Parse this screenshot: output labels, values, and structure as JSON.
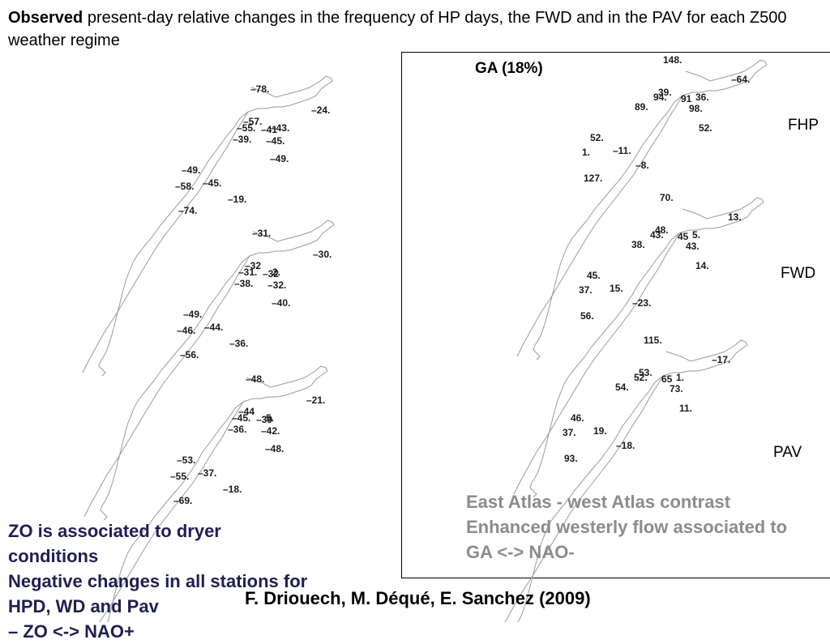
{
  "title": {
    "bold": "Observed",
    "rest": " present-day relative changes in the frequency of HP days, the FWD and in the PAV for each Z500 weather regime"
  },
  "left_panels": [
    {
      "values": [
        {
          "t": "–78."
        },
        {
          "t": "–24."
        },
        {
          "t": "–57."
        },
        {
          "t": "–55."
        },
        {
          "t": "–41"
        },
        {
          "t": "–43."
        },
        {
          "t": "–39."
        },
        {
          "t": "–45."
        },
        {
          "t": "–49."
        },
        {
          "t": "–49."
        },
        {
          "t": "–58."
        },
        {
          "t": "–45."
        },
        {
          "t": "–19."
        },
        {
          "t": "–74."
        }
      ]
    },
    {
      "values": [
        {
          "t": "–31."
        },
        {
          "t": "–30."
        },
        {
          "t": "–32"
        },
        {
          "t": "–31."
        },
        {
          "t": "–32"
        },
        {
          "t": "2."
        },
        {
          "t": "–38."
        },
        {
          "t": "–32."
        },
        {
          "t": "–40."
        },
        {
          "t": "–49."
        },
        {
          "t": "–46."
        },
        {
          "t": "–44."
        },
        {
          "t": "–36."
        },
        {
          "t": "–56."
        }
      ]
    },
    {
      "values": [
        {
          "t": "–48."
        },
        {
          "t": "–21."
        },
        {
          "t": "–44"
        },
        {
          "t": "–45."
        },
        {
          "t": "–39"
        },
        {
          "t": "5."
        },
        {
          "t": "–36."
        },
        {
          "t": "–42."
        },
        {
          "t": "–48."
        },
        {
          "t": "–53."
        },
        {
          "t": "–55."
        },
        {
          "t": "–37."
        },
        {
          "t": "–18."
        },
        {
          "t": "–69."
        }
      ]
    }
  ],
  "right_panels": [
    {
      "label": "FHP",
      "values": [
        {
          "t": "148."
        },
        {
          "t": "–64."
        },
        {
          "t": "39."
        },
        {
          "t": "94."
        },
        {
          "t": "91"
        },
        {
          "t": "36."
        },
        {
          "t": "89."
        },
        {
          "t": "98."
        },
        {
          "t": "52."
        },
        {
          "t": "52."
        },
        {
          "t": "1."
        },
        {
          "t": "–11."
        },
        {
          "t": "–8."
        },
        {
          "t": "127."
        }
      ]
    },
    {
      "label": "FWD",
      "values": [
        {
          "t": "70."
        },
        {
          "t": "13."
        },
        {
          "t": "48."
        },
        {
          "t": "43."
        },
        {
          "t": "45"
        },
        {
          "t": "5."
        },
        {
          "t": "38."
        },
        {
          "t": "43."
        },
        {
          "t": "14."
        },
        {
          "t": "45."
        },
        {
          "t": "37."
        },
        {
          "t": "15."
        },
        {
          "t": "–23."
        },
        {
          "t": "56."
        }
      ]
    },
    {
      "label": "PAV",
      "values": [
        {
          "t": "115."
        },
        {
          "t": "–17."
        },
        {
          "t": "53."
        },
        {
          "t": "52."
        },
        {
          "t": "65"
        },
        {
          "t": "1."
        },
        {
          "t": "54."
        },
        {
          "t": "73."
        },
        {
          "t": "11."
        },
        {
          "t": "46."
        },
        {
          "t": "37."
        },
        {
          "t": "19."
        },
        {
          "t": "–18."
        },
        {
          "t": "93."
        }
      ]
    }
  ],
  "ga_title": "GA (18%)",
  "grey_lines": [
    "East Atlas - west Atlas contrast",
    "Enhanced westerly flow associated to",
    "GA <-> NAO-"
  ],
  "blue_lines": [
    "ZO is associated to dryer",
    "conditions",
    "Negative changes in all stations for",
    "HPD, WD and Pav",
    "– ZO <-> NAO+"
  ],
  "citation": "F. Driouech, M. Déqué, E. Sanchez (2009)",
  "colors": {
    "coast": "#9a9a9a",
    "grey_text": "#8c8c8c",
    "blue_text": "#1f1f55"
  }
}
